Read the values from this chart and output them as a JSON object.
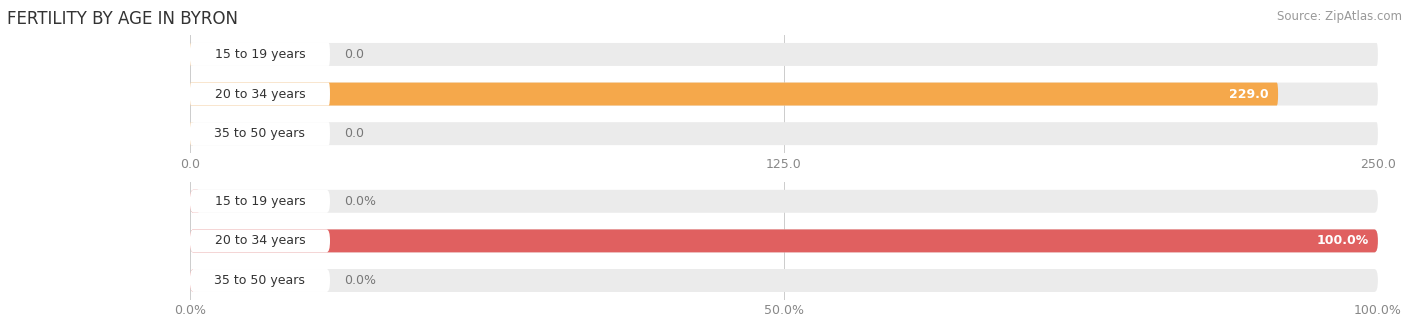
{
  "title": "FERTILITY BY AGE IN BYRON",
  "source": "Source: ZipAtlas.com",
  "top_chart": {
    "categories": [
      "15 to 19 years",
      "20 to 34 years",
      "35 to 50 years"
    ],
    "values": [
      0.0,
      229.0,
      0.0
    ],
    "value_labels": [
      "0.0",
      "229.0",
      "0.0"
    ],
    "bar_color": "#F5A84B",
    "bg_color": "#EBEBEB",
    "xlim": [
      0,
      250.0
    ],
    "xticks": [
      0.0,
      125.0,
      250.0
    ],
    "xtick_labels": [
      "0.0",
      "125.0",
      "250.0"
    ]
  },
  "bottom_chart": {
    "categories": [
      "15 to 19 years",
      "20 to 34 years",
      "35 to 50 years"
    ],
    "values": [
      0.0,
      100.0,
      0.0
    ],
    "value_labels": [
      "0.0%",
      "100.0%",
      "0.0%"
    ],
    "bar_color": "#E06060",
    "bg_color": "#EBEBEB",
    "xlim": [
      0,
      100.0
    ],
    "xticks": [
      0.0,
      50.0,
      100.0
    ],
    "xtick_labels": [
      "0.0%",
      "50.0%",
      "100.0%"
    ]
  },
  "tick_color": "#888888",
  "label_text_color": "#333333",
  "value_text_color_inside": "#ffffff",
  "value_text_color_outside": "#777777",
  "bar_height": 0.58,
  "title_fontsize": 12,
  "label_fontsize": 9,
  "value_fontsize": 9,
  "tick_fontsize": 9,
  "source_fontsize": 8.5
}
